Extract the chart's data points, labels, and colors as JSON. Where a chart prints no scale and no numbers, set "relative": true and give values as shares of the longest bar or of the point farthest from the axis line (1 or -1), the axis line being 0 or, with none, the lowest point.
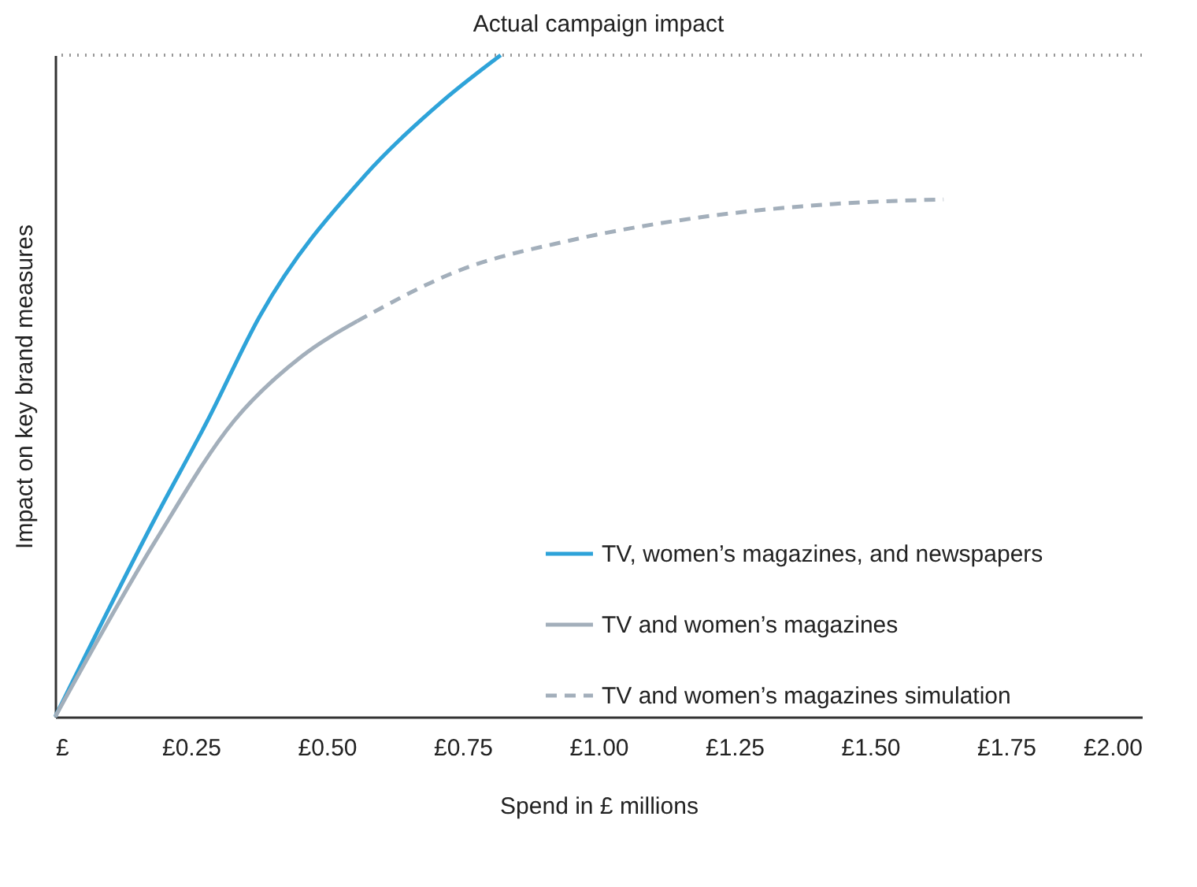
{
  "chart_data": {
    "type": "line",
    "relative": true,
    "xlabel": "Spend in £ millions",
    "ylabel": "Impact on key brand measures",
    "xlim": [
      0,
      2
    ],
    "xticks": [
      {
        "value": 0,
        "label": "£"
      },
      {
        "value": 0.25,
        "label": "£0.25"
      },
      {
        "value": 0.5,
        "label": "£0.50"
      },
      {
        "value": 0.75,
        "label": "£0.75"
      },
      {
        "value": 1,
        "label": "£1.00"
      },
      {
        "value": 1.25,
        "label": "£1.25"
      },
      {
        "value": 1.5,
        "label": "£1.50"
      },
      {
        "value": 1.75,
        "label": "£1.75"
      },
      {
        "value": 2,
        "label": "£2.00"
      }
    ],
    "series": [
      {
        "name": "TV, women’s magazines, and newspapers",
        "color": "#2ea3d9",
        "line_style": "solid",
        "x": [
          0,
          0.184,
          0.28,
          0.377,
          0.57,
          0.715,
          0.82
        ],
        "values": [
          0,
          0.3,
          0.447,
          0.606,
          0.818,
          0.932,
          1
        ]
      },
      {
        "name": "TV and women’s magazines",
        "color": "#a3afbb",
        "line_style": "solid",
        "x": [
          0,
          0.184,
          0.329,
          0.454,
          0.556
        ],
        "values": [
          0,
          0.265,
          0.447,
          0.545,
          0.598
        ]
      },
      {
        "name": "TV and women’s magazines simulation",
        "color": "#a3afbb",
        "line_style": "dashed",
        "x": [
          0.556,
          0.745,
          0.948,
          1.188,
          1.432,
          1.635
        ],
        "values": [
          0.598,
          0.675,
          0.72,
          0.755,
          0.775,
          0.782
        ]
      }
    ],
    "ref_lines": [
      {
        "axis": "y",
        "value": 1,
        "label": "Actual campaign impact",
        "color": "#999999",
        "line_style": "dotted"
      }
    ],
    "legend": "bottom right",
    "grid": false,
    "marker": "none"
  }
}
